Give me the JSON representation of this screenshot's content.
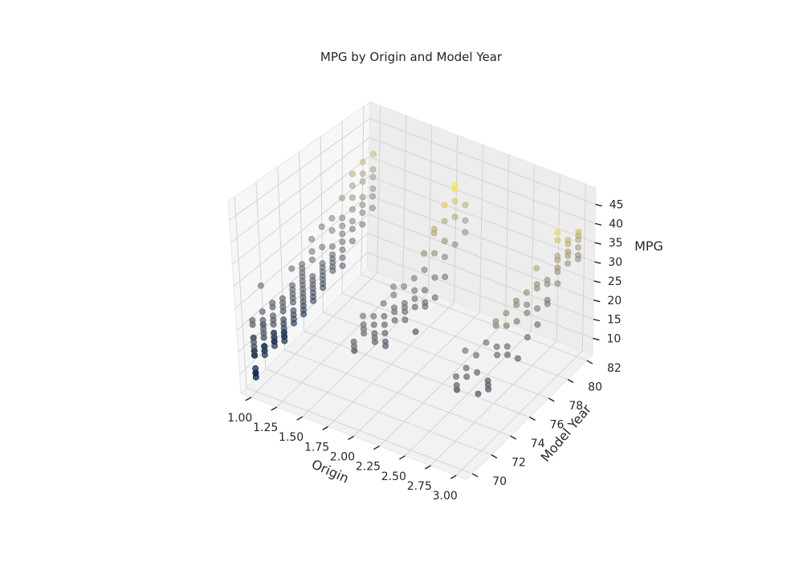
{
  "chart_data": {
    "type": "scatter3d",
    "title": "MPG by Origin and Model Year",
    "xlabel": "Origin",
    "ylabel": "Model Year",
    "zlabel": "MPG",
    "xlim": [
      0.9,
      3.1
    ],
    "ylim": [
      69.4,
      82.6
    ],
    "zlim": [
      5.7,
      49.3
    ],
    "xticks": [
      "1.00",
      "1.25",
      "1.50",
      "1.75",
      "2.00",
      "2.25",
      "2.50",
      "2.75",
      "3.00"
    ],
    "yticks": [
      "70",
      "72",
      "74",
      "76",
      "78",
      "80",
      "82"
    ],
    "zticks": [
      "10",
      "15",
      "20",
      "25",
      "30",
      "35",
      "40",
      "45"
    ],
    "grid": true,
    "colormap": "cividis",
    "colormap_stops": [
      "#00224e",
      "#575d6d",
      "#7c7b78",
      "#a59c74",
      "#fee838"
    ],
    "point_alpha_front": 0.85,
    "point_alpha_back": 0.45,
    "points": [
      [
        1,
        70,
        18
      ],
      [
        1,
        70,
        15
      ],
      [
        1,
        70,
        18
      ],
      [
        1,
        70,
        16
      ],
      [
        1,
        70,
        17
      ],
      [
        1,
        70,
        15
      ],
      [
        1,
        70,
        14
      ],
      [
        1,
        70,
        14
      ],
      [
        1,
        70,
        14
      ],
      [
        1,
        70,
        15
      ],
      [
        1,
        70,
        15
      ],
      [
        1,
        70,
        14
      ],
      [
        1,
        70,
        15
      ],
      [
        1,
        70,
        14
      ],
      [
        1,
        70,
        22
      ],
      [
        1,
        70,
        18
      ],
      [
        1,
        70,
        21
      ],
      [
        1,
        70,
        10
      ],
      [
        1,
        70,
        10
      ],
      [
        1,
        70,
        11
      ],
      [
        1,
        70,
        9
      ],
      [
        1,
        71,
        19
      ],
      [
        1,
        71,
        16
      ],
      [
        1,
        71,
        17
      ],
      [
        1,
        71,
        19
      ],
      [
        1,
        71,
        18
      ],
      [
        1,
        71,
        14
      ],
      [
        1,
        71,
        14
      ],
      [
        1,
        71,
        14
      ],
      [
        1,
        71,
        14
      ],
      [
        1,
        71,
        12
      ],
      [
        1,
        71,
        13
      ],
      [
        1,
        71,
        13
      ],
      [
        1,
        71,
        28
      ],
      [
        1,
        71,
        22
      ],
      [
        1,
        71,
        20
      ],
      [
        1,
        72,
        17
      ],
      [
        1,
        72,
        19
      ],
      [
        1,
        72,
        18
      ],
      [
        1,
        72,
        14
      ],
      [
        1,
        72,
        14
      ],
      [
        1,
        72,
        13
      ],
      [
        1,
        72,
        13
      ],
      [
        1,
        72,
        13
      ],
      [
        1,
        72,
        15
      ],
      [
        1,
        72,
        22
      ],
      [
        1,
        72,
        21
      ],
      [
        1,
        72,
        12
      ],
      [
        1,
        72,
        15
      ],
      [
        1,
        73,
        16
      ],
      [
        1,
        73,
        13
      ],
      [
        1,
        73,
        11
      ],
      [
        1,
        73,
        12
      ],
      [
        1,
        73,
        13
      ],
      [
        1,
        73,
        14
      ],
      [
        1,
        73,
        15
      ],
      [
        1,
        73,
        18
      ],
      [
        1,
        73,
        19
      ],
      [
        1,
        73,
        20
      ],
      [
        1,
        73,
        21
      ],
      [
        1,
        73,
        12
      ],
      [
        1,
        74,
        16
      ],
      [
        1,
        74,
        15
      ],
      [
        1,
        74,
        19
      ],
      [
        1,
        74,
        18
      ],
      [
        1,
        74,
        20
      ],
      [
        1,
        74,
        21
      ],
      [
        1,
        74,
        22
      ],
      [
        1,
        74,
        26
      ],
      [
        1,
        74,
        13
      ],
      [
        1,
        74,
        14
      ],
      [
        1,
        75,
        15
      ],
      [
        1,
        75,
        16
      ],
      [
        1,
        75,
        17
      ],
      [
        1,
        75,
        18
      ],
      [
        1,
        75,
        19
      ],
      [
        1,
        75,
        20
      ],
      [
        1,
        75,
        21
      ],
      [
        1,
        75,
        22
      ],
      [
        1,
        75,
        23
      ],
      [
        1,
        75,
        24
      ],
      [
        1,
        75,
        25
      ],
      [
        1,
        75,
        14
      ],
      [
        1,
        75,
        13
      ],
      [
        1,
        76,
        16
      ],
      [
        1,
        76,
        17
      ],
      [
        1,
        76,
        18
      ],
      [
        1,
        76,
        19
      ],
      [
        1,
        76,
        20
      ],
      [
        1,
        76,
        24
      ],
      [
        1,
        76,
        26
      ],
      [
        1,
        76,
        29
      ],
      [
        1,
        76,
        15
      ],
      [
        1,
        76,
        14
      ],
      [
        1,
        77,
        16
      ],
      [
        1,
        77,
        17
      ],
      [
        1,
        77,
        18
      ],
      [
        1,
        77,
        19
      ],
      [
        1,
        77,
        20
      ],
      [
        1,
        77,
        21
      ],
      [
        1,
        77,
        25
      ],
      [
        1,
        77,
        30
      ],
      [
        1,
        77,
        15
      ],
      [
        1,
        78,
        17
      ],
      [
        1,
        78,
        18
      ],
      [
        1,
        78,
        19
      ],
      [
        1,
        78,
        20
      ],
      [
        1,
        78,
        21
      ],
      [
        1,
        78,
        23
      ],
      [
        1,
        78,
        27
      ],
      [
        1,
        78,
        30
      ],
      [
        1,
        79,
        16
      ],
      [
        1,
        79,
        18
      ],
      [
        1,
        79,
        20
      ],
      [
        1,
        79,
        22
      ],
      [
        1,
        79,
        24
      ],
      [
        1,
        79,
        26
      ],
      [
        1,
        79,
        28
      ],
      [
        1,
        79,
        33
      ],
      [
        1,
        80,
        20
      ],
      [
        1,
        80,
        23
      ],
      [
        1,
        80,
        25
      ],
      [
        1,
        80,
        28
      ],
      [
        1,
        80,
        31
      ],
      [
        1,
        80,
        34
      ],
      [
        1,
        80,
        37
      ],
      [
        1,
        81,
        22
      ],
      [
        1,
        81,
        25
      ],
      [
        1,
        81,
        27
      ],
      [
        1,
        81,
        29
      ],
      [
        1,
        81,
        33
      ],
      [
        1,
        81,
        35
      ],
      [
        1,
        81,
        38
      ],
      [
        1,
        82,
        24
      ],
      [
        1,
        82,
        27
      ],
      [
        1,
        82,
        29
      ],
      [
        1,
        82,
        32
      ],
      [
        1,
        82,
        34
      ],
      [
        1,
        82,
        38
      ],
      [
        2,
        70,
        24
      ],
      [
        2,
        70,
        26
      ],
      [
        2,
        70,
        25
      ],
      [
        2,
        70,
        24
      ],
      [
        2,
        71,
        26
      ],
      [
        2,
        71,
        27
      ],
      [
        2,
        71,
        28
      ],
      [
        2,
        71,
        30
      ],
      [
        2,
        72,
        22
      ],
      [
        2,
        72,
        23
      ],
      [
        2,
        72,
        24
      ],
      [
        2,
        72,
        26
      ],
      [
        2,
        72,
        28
      ],
      [
        2,
        73,
        20
      ],
      [
        2,
        73,
        22
      ],
      [
        2,
        73,
        24
      ],
      [
        2,
        73,
        26
      ],
      [
        2,
        73,
        29
      ],
      [
        2,
        73,
        19
      ],
      [
        2,
        74,
        23
      ],
      [
        2,
        74,
        25
      ],
      [
        2,
        74,
        26
      ],
      [
        2,
        74,
        29
      ],
      [
        2,
        74,
        31
      ],
      [
        2,
        75,
        23
      ],
      [
        2,
        75,
        24
      ],
      [
        2,
        75,
        25
      ],
      [
        2,
        75,
        29
      ],
      [
        2,
        75,
        21
      ],
      [
        2,
        76,
        22
      ],
      [
        2,
        76,
        24
      ],
      [
        2,
        76,
        26
      ],
      [
        2,
        76,
        29
      ],
      [
        2,
        76,
        16
      ],
      [
        2,
        77,
        20
      ],
      [
        2,
        77,
        24
      ],
      [
        2,
        77,
        29
      ],
      [
        2,
        77,
        33
      ],
      [
        2,
        77,
        21
      ],
      [
        2,
        78,
        25
      ],
      [
        2,
        78,
        31
      ],
      [
        2,
        78,
        36
      ],
      [
        2,
        78,
        37
      ],
      [
        2,
        78,
        20
      ],
      [
        2,
        79,
        28
      ],
      [
        2,
        79,
        32
      ],
      [
        2,
        79,
        37
      ],
      [
        2,
        79,
        41
      ],
      [
        2,
        79,
        23
      ],
      [
        2,
        80,
        29
      ],
      [
        2,
        80,
        36
      ],
      [
        2,
        80,
        40
      ],
      [
        2,
        80,
        43
      ],
      [
        2,
        80,
        44
      ],
      [
        2,
        81,
        30
      ],
      [
        2,
        81,
        33
      ],
      [
        2,
        81,
        37
      ],
      [
        3,
        70,
        24
      ],
      [
        3,
        70,
        27
      ],
      [
        3,
        70,
        25
      ],
      [
        3,
        70,
        24
      ],
      [
        3,
        71,
        31
      ],
      [
        3,
        71,
        27
      ],
      [
        3,
        71,
        25
      ],
      [
        3,
        72,
        24
      ],
      [
        3,
        72,
        28
      ],
      [
        3,
        72,
        19
      ],
      [
        3,
        73,
        20
      ],
      [
        3,
        73,
        18
      ],
      [
        3,
        73,
        19
      ],
      [
        3,
        73,
        29
      ],
      [
        3,
        74,
        31
      ],
      [
        3,
        74,
        32
      ],
      [
        3,
        74,
        24
      ],
      [
        3,
        74,
        26
      ],
      [
        3,
        75,
        24
      ],
      [
        3,
        75,
        22
      ],
      [
        3,
        75,
        29
      ],
      [
        3,
        75,
        32
      ],
      [
        3,
        76,
        28
      ],
      [
        3,
        76,
        33
      ],
      [
        3,
        76,
        32
      ],
      [
        3,
        76,
        19
      ],
      [
        3,
        77,
        33
      ],
      [
        3,
        77,
        28
      ],
      [
        3,
        77,
        30
      ],
      [
        3,
        77,
        22
      ],
      [
        3,
        78,
        32
      ],
      [
        3,
        78,
        27
      ],
      [
        3,
        78,
        23
      ],
      [
        3,
        78,
        33
      ],
      [
        3,
        78,
        37
      ],
      [
        3,
        79,
        32
      ],
      [
        3,
        79,
        31
      ],
      [
        3,
        79,
        27
      ],
      [
        3,
        79,
        26
      ],
      [
        3,
        80,
        35
      ],
      [
        3,
        80,
        33
      ],
      [
        3,
        80,
        32
      ],
      [
        3,
        80,
        29
      ],
      [
        3,
        80,
        36
      ],
      [
        3,
        80,
        40
      ],
      [
        3,
        80,
        42
      ],
      [
        3,
        81,
        32
      ],
      [
        3,
        81,
        34
      ],
      [
        3,
        81,
        38
      ],
      [
        3,
        81,
        35
      ],
      [
        3,
        81,
        37
      ],
      [
        3,
        82,
        34
      ],
      [
        3,
        82,
        36
      ],
      [
        3,
        82,
        37
      ],
      [
        3,
        82,
        38
      ],
      [
        3,
        82,
        32
      ],
      [
        3,
        82,
        31
      ]
    ]
  }
}
